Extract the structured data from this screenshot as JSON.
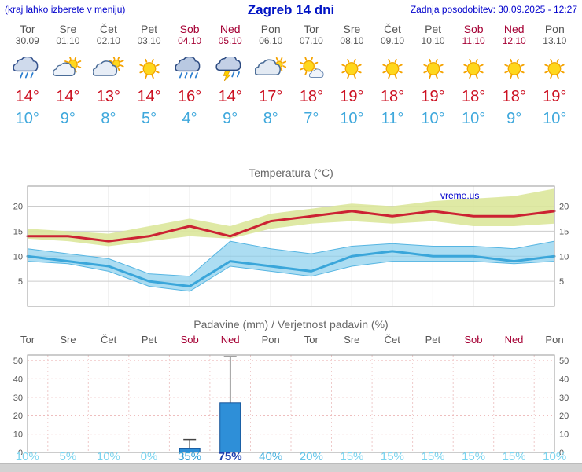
{
  "header": {
    "location_note": "(kraj lahko izberete v meniju)",
    "title": "Zagreb 14 dni",
    "last_update": "Zadnja posodobitev: 30.09.2025 - 12:27"
  },
  "watermark": "vreme.us",
  "colors": {
    "weekday": "#555555",
    "weekend": "#a50034",
    "tmax": "#cc1122",
    "tmin": "#3fa8dc",
    "header_blue": "#0000cc"
  },
  "days": [
    {
      "name": "Tor",
      "date": "30.09",
      "weekend": false,
      "icon": "rain",
      "tmax": "14°",
      "tmin": "10°"
    },
    {
      "name": "Sre",
      "date": "01.10",
      "weekend": false,
      "icon": "partly-cloudy",
      "tmax": "14°",
      "tmin": "9°"
    },
    {
      "name": "Čet",
      "date": "02.10",
      "weekend": false,
      "icon": "mostly-cloudy",
      "tmax": "13°",
      "tmin": "8°"
    },
    {
      "name": "Pet",
      "date": "03.10",
      "weekend": false,
      "icon": "sunny",
      "tmax": "14°",
      "tmin": "5°"
    },
    {
      "name": "Sob",
      "date": "04.10",
      "weekend": true,
      "icon": "heavy-rain",
      "tmax": "16°",
      "tmin": "4°"
    },
    {
      "name": "Ned",
      "date": "05.10",
      "weekend": true,
      "icon": "thunderstorm",
      "tmax": "14°",
      "tmin": "9°"
    },
    {
      "name": "Pon",
      "date": "06.10",
      "weekend": false,
      "icon": "cloudy",
      "tmax": "17°",
      "tmin": "8°"
    },
    {
      "name": "Tor",
      "date": "07.10",
      "weekend": false,
      "icon": "mostly-sunny",
      "tmax": "18°",
      "tmin": "7°"
    },
    {
      "name": "Sre",
      "date": "08.10",
      "weekend": false,
      "icon": "sunny",
      "tmax": "19°",
      "tmin": "10°"
    },
    {
      "name": "Čet",
      "date": "09.10",
      "weekend": false,
      "icon": "sunny",
      "tmax": "18°",
      "tmin": "11°"
    },
    {
      "name": "Pet",
      "date": "10.10",
      "weekend": false,
      "icon": "sunny",
      "tmax": "19°",
      "tmin": "10°"
    },
    {
      "name": "Sob",
      "date": "11.10",
      "weekend": true,
      "icon": "sunny",
      "tmax": "18°",
      "tmin": "10°"
    },
    {
      "name": "Ned",
      "date": "12.10",
      "weekend": true,
      "icon": "sunny",
      "tmax": "18°",
      "tmin": "9°"
    },
    {
      "name": "Pon",
      "date": "13.10",
      "weekend": false,
      "icon": "sunny",
      "tmax": "19°",
      "tmin": "10°"
    }
  ],
  "chart_data": [
    {
      "type": "line",
      "title": "Temperatura (°C)",
      "categories": [
        "Tor",
        "Sre",
        "Čet",
        "Pet",
        "Sob",
        "Ned",
        "Pon",
        "Tor",
        "Sre",
        "Čet",
        "Pet",
        "Sob",
        "Ned",
        "Pon"
      ],
      "ylim": [
        0,
        24
      ],
      "yticks": [
        5,
        10,
        15,
        20
      ],
      "grid": true,
      "legend": "none",
      "series": [
        {
          "name": "max_temp",
          "color": "#cc2233",
          "values": [
            14,
            14,
            13,
            14,
            16,
            14,
            17,
            18,
            19,
            18,
            19,
            18,
            18,
            19
          ],
          "band_upper": [
            15.5,
            15,
            14.5,
            16,
            17.5,
            16,
            18.5,
            19.5,
            20.5,
            20,
            21,
            21.5,
            22,
            23.5
          ],
          "band_lower": [
            13.5,
            13,
            12,
            13,
            14,
            13.5,
            15.5,
            16.5,
            17,
            16.5,
            17,
            16,
            16,
            16.5
          ],
          "band_color": "#dbe79b"
        },
        {
          "name": "min_temp",
          "color": "#3aa6da",
          "values": [
            10,
            9,
            8,
            5,
            4,
            9,
            8,
            7,
            10,
            11,
            10,
            10,
            9,
            10
          ],
          "band_upper": [
            11.5,
            10.5,
            9.5,
            6.5,
            6,
            13,
            11.5,
            10.5,
            12,
            12.5,
            12,
            12,
            11.5,
            13
          ],
          "band_lower": [
            9,
            8.5,
            7,
            4,
            3,
            8,
            7,
            6,
            8,
            9,
            9,
            9,
            8.5,
            9
          ],
          "band_color": "#85cdec"
        }
      ]
    },
    {
      "type": "bar",
      "title": "Padavine (mm) / Verjetnost padavin (%)",
      "categories": [
        "Tor",
        "Sre",
        "Čet",
        "Pet",
        "Sob",
        "Ned",
        "Pon",
        "Tor",
        "Sre",
        "Čet",
        "Pet",
        "Sob",
        "Ned",
        "Pon"
      ],
      "weekend_flags": [
        false,
        false,
        false,
        false,
        true,
        true,
        false,
        false,
        false,
        false,
        false,
        true,
        true,
        false
      ],
      "values": [
        0,
        0,
        0,
        0,
        2,
        27,
        0,
        0,
        0,
        0,
        0,
        0,
        0,
        0
      ],
      "whisker_max": [
        0,
        0,
        0,
        0,
        7,
        52,
        0,
        0,
        0,
        0,
        0,
        0,
        0,
        0
      ],
      "ylim": [
        0,
        53
      ],
      "yticks": [
        0,
        10,
        20,
        30,
        40,
        50
      ],
      "bar_color": "#2e8fd8",
      "probabilities": [
        {
          "label": "10%",
          "color": "#7ad4ef",
          "bold": false
        },
        {
          "label": "5%",
          "color": "#7ad4ef",
          "bold": false
        },
        {
          "label": "10%",
          "color": "#7ad4ef",
          "bold": false
        },
        {
          "label": "0%",
          "color": "#7ad4ef",
          "bold": false
        },
        {
          "label": "35%",
          "color": "#2f9ed6",
          "bold": false
        },
        {
          "label": "75%",
          "color": "#1b3eae",
          "bold": true
        },
        {
          "label": "40%",
          "color": "#4fb6e2",
          "bold": false
        },
        {
          "label": "20%",
          "color": "#63c6ea",
          "bold": false
        },
        {
          "label": "15%",
          "color": "#7ad4ef",
          "bold": false
        },
        {
          "label": "15%",
          "color": "#7ad4ef",
          "bold": false
        },
        {
          "label": "15%",
          "color": "#7ad4ef",
          "bold": false
        },
        {
          "label": "15%",
          "color": "#7ad4ef",
          "bold": false
        },
        {
          "label": "15%",
          "color": "#7ad4ef",
          "bold": false
        },
        {
          "label": "10%",
          "color": "#7ad4ef",
          "bold": false
        }
      ]
    }
  ]
}
